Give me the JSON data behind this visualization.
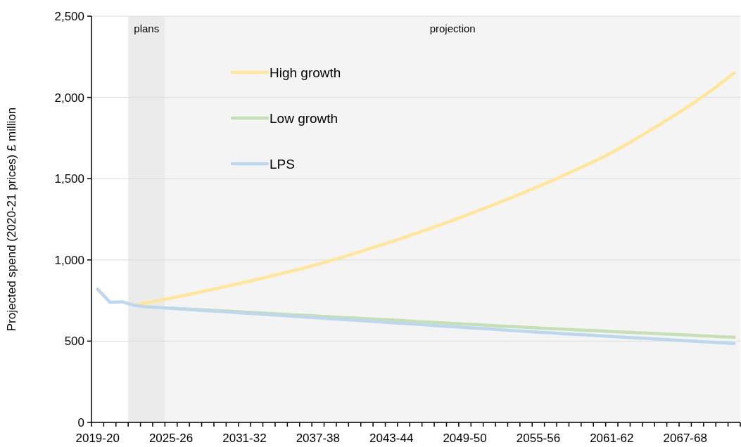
{
  "chart_data": {
    "type": "line",
    "ylabel": "Projected spend (2020-21 prices) £ million",
    "categories": [
      "2019-20",
      null,
      null,
      null,
      null,
      null,
      "2025-26",
      null,
      null,
      null,
      null,
      null,
      "2031-32",
      null,
      null,
      null,
      null,
      null,
      "2037-38",
      null,
      null,
      null,
      null,
      null,
      "2043-44",
      null,
      null,
      null,
      null,
      null,
      "2049-50",
      null,
      null,
      null,
      null,
      null,
      "2055-56",
      null,
      null,
      null,
      null,
      null,
      "2061-62",
      null,
      null,
      null,
      null,
      null,
      "2067-68",
      null,
      null,
      null,
      null
    ],
    "series": [
      {
        "name": "High growth",
        "color": "#ffe699",
        "values": [
          null,
          null,
          null,
          720,
          735,
          750,
          765,
          780,
          796,
          812,
          829,
          845,
          862,
          880,
          897,
          916,
          934,
          953,
          973,
          995,
          1017,
          1040,
          1064,
          1088,
          1112,
          1137,
          1163,
          1189,
          1216,
          1243,
          1271,
          1300,
          1329,
          1359,
          1389,
          1420,
          1452,
          1484,
          1518,
          1552,
          1587,
          1622,
          1660,
          1702,
          1746,
          1791,
          1837,
          1884,
          1932,
          1982,
          2035,
          2092,
          2150
        ]
      },
      {
        "name": "Low growth",
        "color": "#c5e0b4",
        "values": [
          null,
          null,
          null,
          null,
          null,
          null,
          703,
          699,
          695,
          691,
          687,
          683,
          679,
          675,
          670,
          666,
          662,
          658,
          654,
          650,
          646,
          642,
          638,
          634,
          630,
          626,
          621,
          617,
          613,
          609,
          605,
          601,
          597,
          593,
          589,
          585,
          581,
          577,
          574,
          570,
          567,
          563,
          559,
          556,
          552,
          549,
          545,
          542,
          538,
          534,
          531,
          527,
          524
        ]
      },
      {
        "name": "LPS",
        "color": "#bdd7ee",
        "values": [
          820,
          740,
          742,
          720,
          711,
          707,
          702,
          697,
          692,
          687,
          683,
          678,
          673,
          668,
          663,
          658,
          653,
          648,
          643,
          638,
          634,
          629,
          624,
          619,
          614,
          609,
          604,
          599,
          594,
          589,
          584,
          580,
          575,
          570,
          565,
          560,
          555,
          551,
          546,
          542,
          538,
          533,
          529,
          524,
          520,
          516,
          511,
          507,
          503,
          498,
          494,
          490,
          485
        ]
      }
    ],
    "ylim": [
      0,
      2500
    ],
    "yticks": [
      0,
      500,
      {
        "value": 1000,
        "label": "1,000"
      },
      {
        "value": 1500,
        "label": "1,500"
      },
      {
        "value": 2000,
        "label": "2,000"
      },
      {
        "value": 2500,
        "label": "2,500"
      }
    ],
    "annotations": [
      "plans",
      "projection"
    ],
    "grid": "y",
    "legend": "top left",
    "marker": "none",
    "line_style": "solid"
  }
}
